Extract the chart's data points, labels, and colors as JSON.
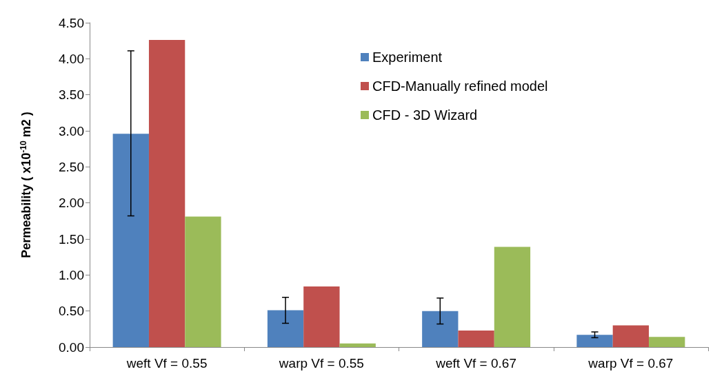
{
  "chart_data": {
    "type": "bar",
    "ylabel": "Permeability ( x10$^{-10}$ m2 )",
    "categories": [
      "weft Vf = 0.55",
      "warp Vf = 0.55",
      "weft Vf = 0.67",
      "warp Vf = 0.67"
    ],
    "series": [
      {
        "name": "Experiment",
        "color": "#4f81bd",
        "values": [
          2.96,
          0.51,
          0.5,
          0.17
        ],
        "errors": [
          [
            1.82,
            4.11
          ],
          [
            0.33,
            0.69
          ],
          [
            0.32,
            0.68
          ],
          [
            0.13,
            0.21
          ]
        ]
      },
      {
        "name": "CFD-Manually refined model",
        "color": "#c0504d",
        "values": [
          4.26,
          0.84,
          0.23,
          0.3
        ]
      },
      {
        "name": "CFD - 3D Wizard",
        "color": "#9bbb59",
        "values": [
          1.81,
          0.05,
          1.39,
          0.14
        ]
      }
    ],
    "ylim": [
      0,
      4.5
    ],
    "yticks": [
      {
        "value": 0,
        "label": "0.00"
      },
      {
        "value": 0.5,
        "label": "0.50"
      },
      {
        "value": 1,
        "label": "1.00"
      },
      {
        "value": 1.5,
        "label": "1.50"
      },
      {
        "value": 2,
        "label": "2.00"
      },
      {
        "value": 2.5,
        "label": "2.50"
      },
      {
        "value": 3,
        "label": "3.00"
      },
      {
        "value": 3.5,
        "label": "3.50"
      },
      {
        "value": 4,
        "label": "4.00"
      },
      {
        "value": 4.5,
        "label": "4.50"
      }
    ],
    "grid": false,
    "legend": "top right"
  }
}
